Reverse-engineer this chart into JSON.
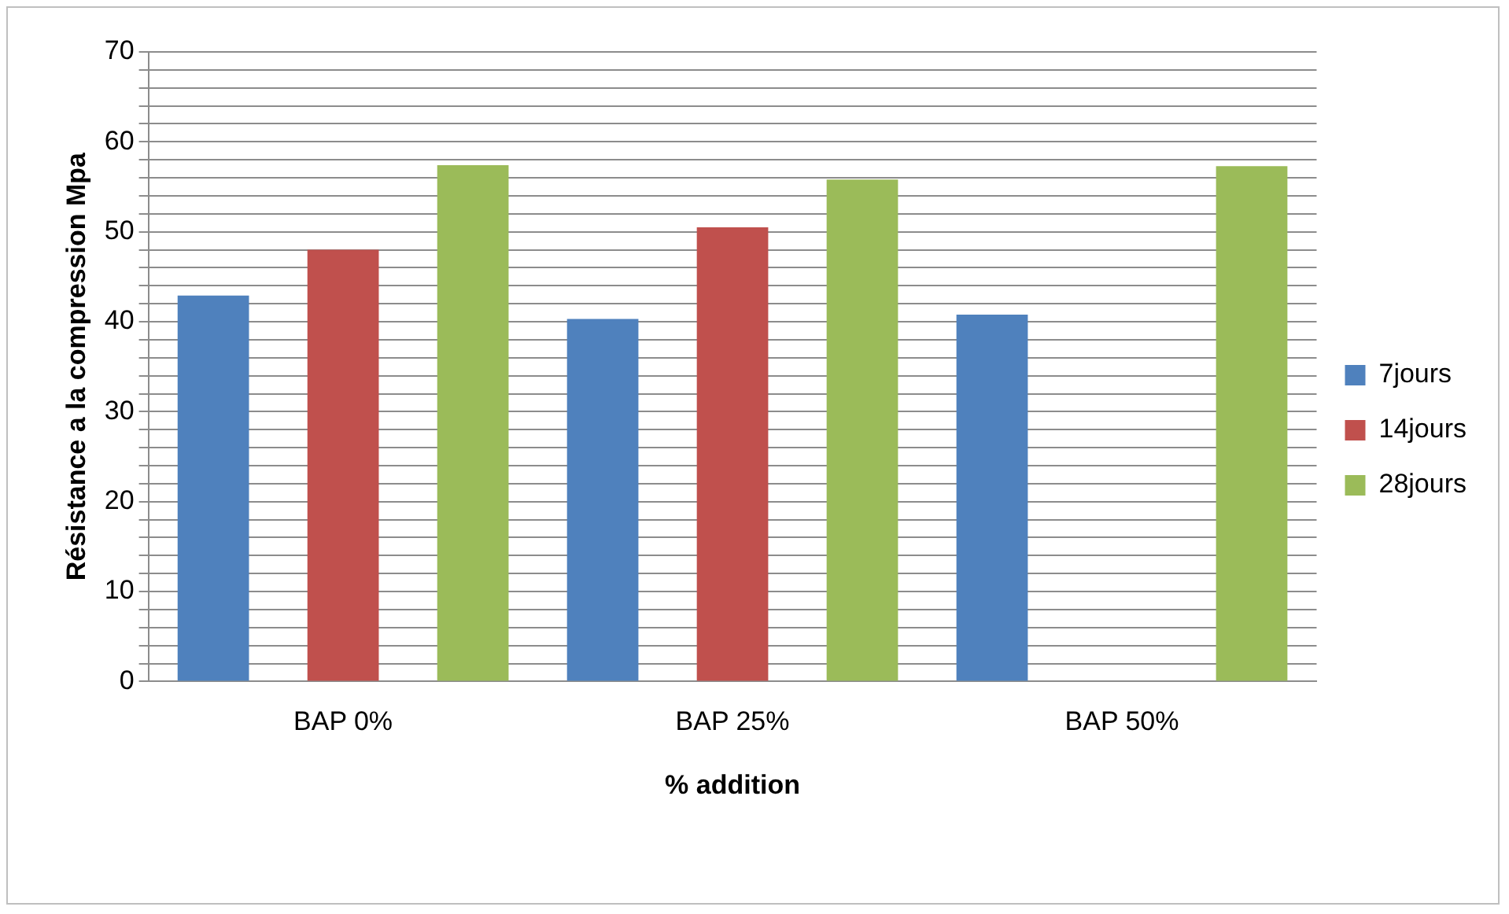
{
  "chart_data": {
    "type": "bar",
    "xlabel": "% addition",
    "ylabel": "Résistance a la compression Mpa",
    "categories": [
      "BAP 0%",
      "BAP 25%",
      "BAP 50%"
    ],
    "series": [
      {
        "name": "7jours",
        "color": "#4f81bd",
        "values": [
          42.9,
          40.3,
          40.8
        ]
      },
      {
        "name": "14jours",
        "color": "#c0504d",
        "values": [
          48.0,
          50.5,
          null
        ]
      },
      {
        "name": "28jours",
        "color": "#9bbb59",
        "values": [
          57.4,
          55.8,
          57.3
        ]
      }
    ],
    "ylim": [
      0,
      70
    ],
    "yticks": [
      0,
      {
        "value": 2,
        "label": null
      },
      {
        "value": 4,
        "label": null
      },
      {
        "value": 6,
        "label": null
      },
      {
        "value": 8,
        "label": null
      },
      10,
      {
        "value": 12,
        "label": null
      },
      {
        "value": 14,
        "label": null
      },
      {
        "value": 16,
        "label": null
      },
      {
        "value": 18,
        "label": null
      },
      20,
      {
        "value": 22,
        "label": null
      },
      {
        "value": 24,
        "label": null
      },
      {
        "value": 26,
        "label": null
      },
      {
        "value": 28,
        "label": null
      },
      30,
      {
        "value": 32,
        "label": null
      },
      {
        "value": 34,
        "label": null
      },
      {
        "value": 36,
        "label": null
      },
      {
        "value": 38,
        "label": null
      },
      40,
      {
        "value": 42,
        "label": null
      },
      {
        "value": 44,
        "label": null
      },
      {
        "value": 46,
        "label": null
      },
      {
        "value": 48,
        "label": null
      },
      50,
      {
        "value": 52,
        "label": null
      },
      {
        "value": 54,
        "label": null
      },
      {
        "value": 56,
        "label": null
      },
      {
        "value": 58,
        "label": null
      },
      60,
      {
        "value": 62,
        "label": null
      },
      {
        "value": 64,
        "label": null
      },
      {
        "value": 66,
        "label": null
      },
      {
        "value": 68,
        "label": null
      },
      70
    ],
    "grid": "y",
    "legend": "right"
  }
}
